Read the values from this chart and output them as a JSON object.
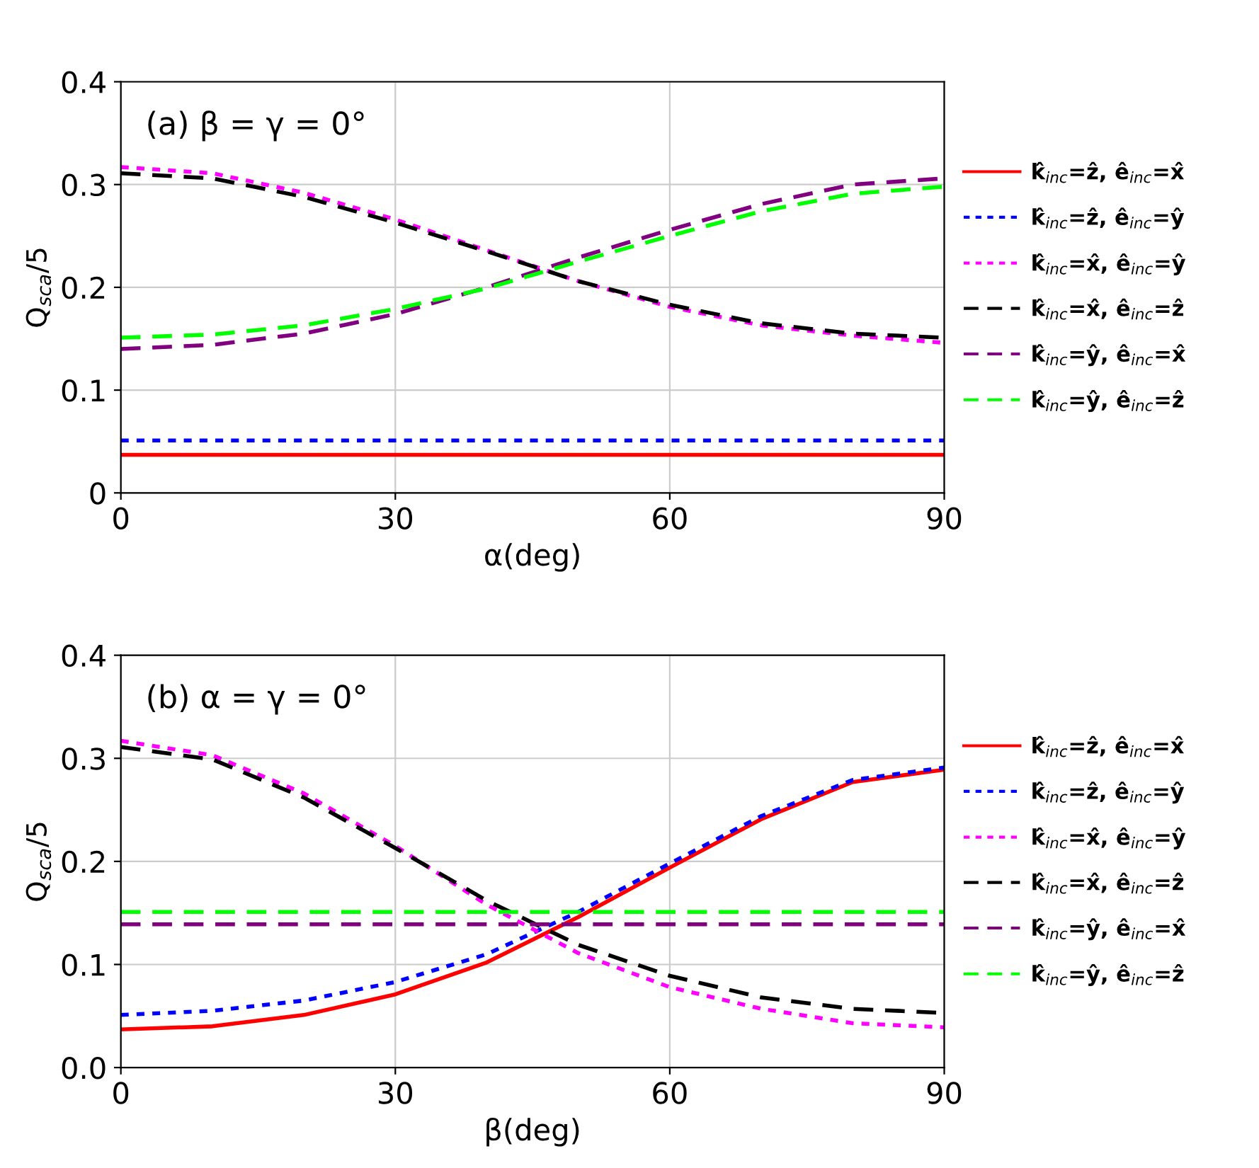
{
  "chart_data": [
    {
      "type": "line",
      "xlabel": "α(deg)",
      "ylabel": "Q$_{sca}$/5",
      "annotations": [
        "(a) β = γ = 0°"
      ],
      "x": [
        0,
        10,
        20,
        30,
        40,
        50,
        60,
        70,
        80,
        90
      ],
      "xlim": [
        0,
        90
      ],
      "xticks": [
        0,
        30,
        60,
        90
      ],
      "ylim": [
        0,
        0.4
      ],
      "yticks": [
        {
          "value": 0,
          "label": "0"
        },
        0.1,
        0.2,
        0.3,
        0.4
      ],
      "grid": true,
      "legend": "right",
      "series": [
        {
          "name": "k̂$_{inc}$=ẑ, ê$_{inc}$=x̂",
          "color": "#ff0000",
          "line_style": "solid",
          "values": [
            0.037,
            0.037,
            0.037,
            0.037,
            0.037,
            0.037,
            0.037,
            0.037,
            0.037,
            0.037
          ]
        },
        {
          "name": "k̂$_{inc}$=ẑ, ê$_{inc}$=ŷ",
          "color": "#0000ff",
          "line_style": "dotted",
          "values": [
            0.051,
            0.051,
            0.051,
            0.051,
            0.051,
            0.051,
            0.051,
            0.051,
            0.051,
            0.051
          ]
        },
        {
          "name": "k̂$_{inc}$=x̂, ê$_{inc}$=ŷ",
          "color": "#ff00ff",
          "line_style": "dotted",
          "values": [
            0.317,
            0.311,
            0.292,
            0.266,
            0.236,
            0.206,
            0.181,
            0.163,
            0.153,
            0.146
          ]
        },
        {
          "name": "k̂$_{inc}$=x̂, ê$_{inc}$=ẑ",
          "color": "#000000",
          "line_style": "dashed",
          "values": [
            0.311,
            0.306,
            0.288,
            0.263,
            0.235,
            0.206,
            0.183,
            0.165,
            0.155,
            0.151
          ]
        },
        {
          "name": "k̂$_{inc}$=ŷ, ê$_{inc}$=x̂",
          "color": "#800080",
          "line_style": "dashed",
          "values": [
            0.14,
            0.144,
            0.155,
            0.174,
            0.2,
            0.229,
            0.256,
            0.281,
            0.3,
            0.306
          ]
        },
        {
          "name": "k̂$_{inc}$=ŷ, ê$_{inc}$=ẑ",
          "color": "#00ff00",
          "line_style": "dashed",
          "values": [
            0.151,
            0.154,
            0.163,
            0.179,
            0.199,
            0.225,
            0.25,
            0.274,
            0.291,
            0.298
          ]
        }
      ]
    },
    {
      "type": "line",
      "xlabel": "β(deg)",
      "ylabel": "Q$_{sca}$/5",
      "annotations": [
        "(b) α = γ = 0°"
      ],
      "x": [
        0,
        10,
        20,
        30,
        40,
        50,
        60,
        70,
        80,
        90
      ],
      "xlim": [
        0,
        90
      ],
      "xticks": [
        0,
        30,
        60,
        90
      ],
      "ylim": [
        0,
        0.4
      ],
      "yticks": [
        {
          "value": 0,
          "label": "0.0"
        },
        0.1,
        0.2,
        0.3,
        0.4
      ],
      "grid": true,
      "legend": "right",
      "series": [
        {
          "name": "k̂$_{inc}$=ẑ, ê$_{inc}$=x̂",
          "color": "#ff0000",
          "line_style": "solid",
          "values": [
            0.037,
            0.04,
            0.051,
            0.071,
            0.102,
            0.146,
            0.194,
            0.241,
            0.277,
            0.289
          ]
        },
        {
          "name": "k̂$_{inc}$=ẑ, ê$_{inc}$=ŷ",
          "color": "#0000ff",
          "line_style": "dotted",
          "values": [
            0.051,
            0.055,
            0.065,
            0.083,
            0.11,
            0.151,
            0.198,
            0.244,
            0.279,
            0.291
          ]
        },
        {
          "name": "k̂$_{inc}$=x̂, ê$_{inc}$=ŷ",
          "color": "#ff00ff",
          "line_style": "dotted",
          "values": [
            0.317,
            0.303,
            0.266,
            0.215,
            0.158,
            0.111,
            0.078,
            0.057,
            0.043,
            0.039
          ]
        },
        {
          "name": "k̂$_{inc}$=x̂, ê$_{inc}$=ẑ",
          "color": "#000000",
          "line_style": "dashed",
          "values": [
            0.311,
            0.299,
            0.262,
            0.213,
            0.162,
            0.119,
            0.089,
            0.068,
            0.057,
            0.053
          ]
        },
        {
          "name": "k̂$_{inc}$=ŷ, ê$_{inc}$=x̂",
          "color": "#800080",
          "line_style": "dashed",
          "values": [
            0.139,
            0.139,
            0.139,
            0.139,
            0.139,
            0.139,
            0.139,
            0.139,
            0.139,
            0.139
          ]
        },
        {
          "name": "k̂$_{inc}$=ŷ, ê$_{inc}$=ẑ",
          "color": "#00ff00",
          "line_style": "dashed",
          "values": [
            0.151,
            0.151,
            0.151,
            0.151,
            0.151,
            0.151,
            0.151,
            0.151,
            0.151,
            0.151
          ]
        }
      ]
    }
  ]
}
